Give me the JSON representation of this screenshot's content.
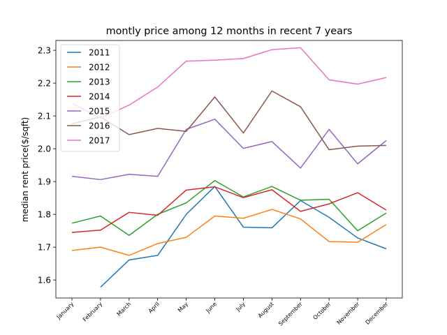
{
  "chart_data": {
    "type": "line",
    "title": "montly price among 12 months in recent 7 years",
    "xlabel": "",
    "ylabel": "median rent price($/sqft)",
    "categories": [
      "January",
      "February",
      "March",
      "April",
      "May",
      "June",
      "July",
      "August",
      "September",
      "October",
      "November",
      "December"
    ],
    "ylim": [
      1.545,
      2.33
    ],
    "yticks": [
      1.6,
      1.7,
      1.8,
      1.9,
      2.0,
      2.1,
      2.2,
      2.3
    ],
    "ytick_labels": [
      "1.6",
      "1.7",
      "1.8",
      "1.9",
      "2.0",
      "2.1",
      "2.2",
      "2.3"
    ],
    "legend_position": "top-left",
    "grid": false,
    "series": [
      {
        "name": "2011",
        "color": "#1f77b4",
        "values": [
          null,
          1.578,
          1.661,
          1.675,
          1.8,
          1.885,
          1.761,
          1.759,
          1.842,
          1.791,
          1.728,
          1.695
        ]
      },
      {
        "name": "2012",
        "color": "#ff7f0e",
        "values": [
          1.69,
          1.7,
          1.675,
          1.711,
          1.73,
          1.795,
          1.788,
          1.815,
          1.786,
          1.717,
          1.715,
          1.769
        ]
      },
      {
        "name": "2013",
        "color": "#2ca02c",
        "values": [
          1.773,
          1.795,
          1.736,
          1.8,
          1.835,
          1.903,
          1.853,
          1.885,
          1.843,
          1.846,
          1.75,
          1.804
        ]
      },
      {
        "name": "2014",
        "color": "#d62728",
        "values": [
          1.745,
          1.752,
          1.806,
          1.797,
          1.874,
          1.884,
          1.851,
          1.875,
          1.809,
          1.832,
          1.866,
          1.813
        ]
      },
      {
        "name": "2015",
        "color": "#9467bd",
        "values": [
          1.916,
          1.906,
          1.922,
          1.916,
          2.059,
          2.09,
          2.001,
          2.022,
          1.941,
          2.059,
          1.954,
          2.025
        ]
      },
      {
        "name": "2016",
        "color": "#8c564b",
        "values": [
          2.076,
          2.097,
          2.043,
          2.062,
          2.053,
          2.158,
          2.048,
          2.176,
          2.128,
          1.997,
          2.008,
          2.01
        ]
      },
      {
        "name": "2017",
        "color": "#e377c2",
        "values": [
          2.139,
          2.093,
          2.133,
          2.188,
          2.267,
          2.27,
          2.275,
          2.302,
          2.308,
          2.21,
          2.197,
          2.217
        ]
      }
    ]
  }
}
